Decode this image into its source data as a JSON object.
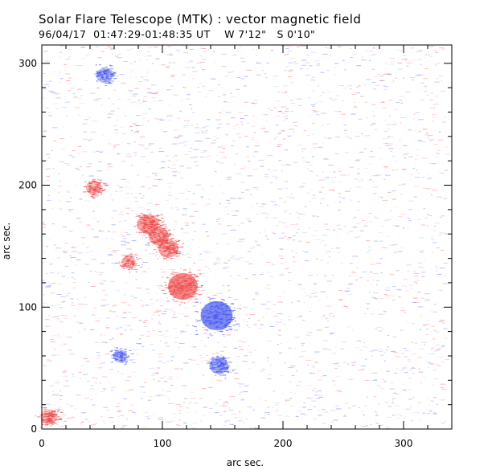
{
  "header": {
    "title": "Solar Flare Telescope (MTK) : vector magnetic field",
    "date_time": "96/04/17  01:47:29-01:48:35 UT",
    "position_w": "W 7'12\"",
    "position_s": "S 0'10\""
  },
  "chart_data": {
    "type": "heatmap",
    "xlabel": "arc sec.",
    "ylabel": "arc sec.",
    "xlim": [
      0,
      340
    ],
    "ylim": [
      0,
      315
    ],
    "x_ticks": [
      0,
      100,
      200,
      300
    ],
    "y_ticks": [
      0,
      100,
      200,
      300
    ],
    "x_tick_labels": [
      "0",
      "100",
      "200",
      "300"
    ],
    "y_tick_labels": [
      "0",
      "100",
      "200",
      "300"
    ],
    "colors": {
      "positive": "#ee4444",
      "negative": "#4455ee",
      "background": "#ffffff"
    },
    "magnetic_patches": [
      {
        "polarity": "negative",
        "x": 145,
        "y": 93,
        "strength": 1.0
      },
      {
        "polarity": "positive",
        "x": 117,
        "y": 117,
        "strength": 0.9
      },
      {
        "polarity": "positive",
        "x": 88,
        "y": 168,
        "strength": 0.55
      },
      {
        "polarity": "positive",
        "x": 97,
        "y": 158,
        "strength": 0.5
      },
      {
        "polarity": "positive",
        "x": 105,
        "y": 148,
        "strength": 0.5
      },
      {
        "polarity": "positive",
        "x": 43,
        "y": 198,
        "strength": 0.3
      },
      {
        "polarity": "positive",
        "x": 72,
        "y": 137,
        "strength": 0.25
      },
      {
        "polarity": "negative",
        "x": 147,
        "y": 52,
        "strength": 0.45
      },
      {
        "polarity": "negative",
        "x": 52,
        "y": 290,
        "strength": 0.35
      },
      {
        "polarity": "negative",
        "x": 65,
        "y": 60,
        "strength": 0.25
      },
      {
        "polarity": "positive",
        "x": 6,
        "y": 10,
        "strength": 0.35
      }
    ]
  }
}
